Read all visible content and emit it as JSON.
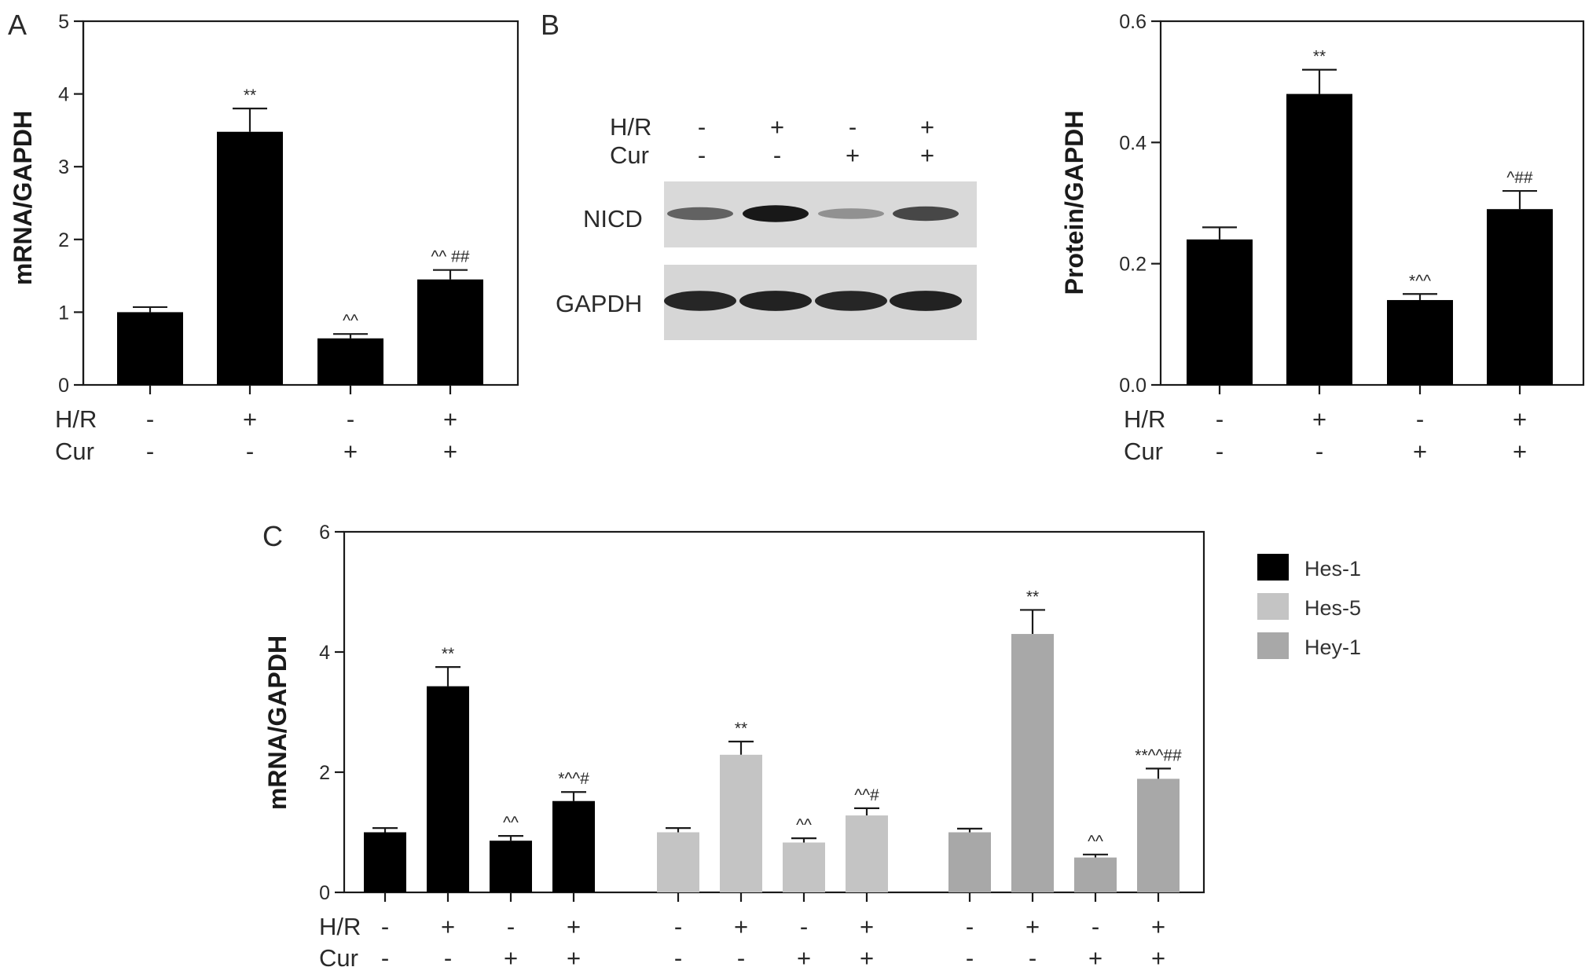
{
  "condition_labels": {
    "hr": "H/R",
    "cur": "Cur"
  },
  "condition_signs": {
    "hr": [
      "-",
      "+",
      "-",
      "+"
    ],
    "cur": [
      "-",
      "-",
      "+",
      "+"
    ]
  },
  "western_blot": {
    "panel_label": "B",
    "conditions": {
      "hr": "H/R",
      "cur": "Cur"
    },
    "bands": [
      "NICD",
      "GAPDH"
    ],
    "nicd_band_intensity": [
      0.55,
      0.95,
      0.3,
      0.7
    ],
    "gapdh_band_intensity": [
      0.9,
      0.92,
      0.9,
      0.92
    ]
  },
  "chart_data": [
    {
      "panel_label": "A",
      "type": "bar",
      "ylabel": "mRNA/GAPDH",
      "ylim": [
        0,
        5
      ],
      "yticks": [
        "0",
        "1",
        "2",
        "3",
        "4",
        "5"
      ],
      "categories": [
        "-/-",
        "+/-",
        "-/+",
        "+/+"
      ],
      "series": [
        {
          "values": [
            1.0,
            3.48,
            0.64,
            1.45
          ],
          "errors": [
            0.07,
            0.32,
            0.06,
            0.13
          ],
          "annotations": [
            "",
            "**",
            "^^",
            "^^ ##"
          ],
          "color": "#000000"
        }
      ]
    },
    {
      "panel_label": "B",
      "type": "bar",
      "ylabel": "Protein/GAPDH",
      "ylim": [
        0,
        0.6
      ],
      "yticks": [
        "0.0",
        "0.2",
        "0.4",
        "0.6"
      ],
      "categories": [
        "-/-",
        "+/-",
        "-/+",
        "+/+"
      ],
      "series": [
        {
          "values": [
            0.24,
            0.48,
            0.14,
            0.29
          ],
          "errors": [
            0.02,
            0.04,
            0.01,
            0.03
          ],
          "annotations": [
            "",
            "**",
            "*^^",
            "^##"
          ],
          "color": "#000000"
        }
      ]
    },
    {
      "panel_label": "C",
      "type": "bar",
      "ylabel": "mRNA/GAPDH",
      "ylim": [
        0,
        6
      ],
      "yticks": [
        "0",
        "2",
        "4",
        "6"
      ],
      "categories": [
        "-/-",
        "+/-",
        "-/+",
        "+/+"
      ],
      "series": [
        {
          "name": "Hes-1",
          "color": "#000000",
          "values": [
            1.0,
            3.43,
            0.86,
            1.52
          ],
          "errors": [
            0.07,
            0.32,
            0.08,
            0.15
          ],
          "annotations": [
            "",
            "**",
            "^^",
            "*^^#"
          ]
        },
        {
          "name": "Hes-5",
          "color": "#c4c4c4",
          "values": [
            1.0,
            2.29,
            0.83,
            1.28
          ],
          "errors": [
            0.07,
            0.22,
            0.07,
            0.12
          ],
          "annotations": [
            "",
            "**",
            "^^",
            "^^#"
          ]
        },
        {
          "name": "Hey-1",
          "color": "#a8a8a8",
          "values": [
            1.0,
            4.3,
            0.58,
            1.89
          ],
          "errors": [
            0.06,
            0.4,
            0.05,
            0.17
          ],
          "annotations": [
            "",
            "**",
            "^^",
            "**^^##"
          ]
        }
      ]
    }
  ]
}
